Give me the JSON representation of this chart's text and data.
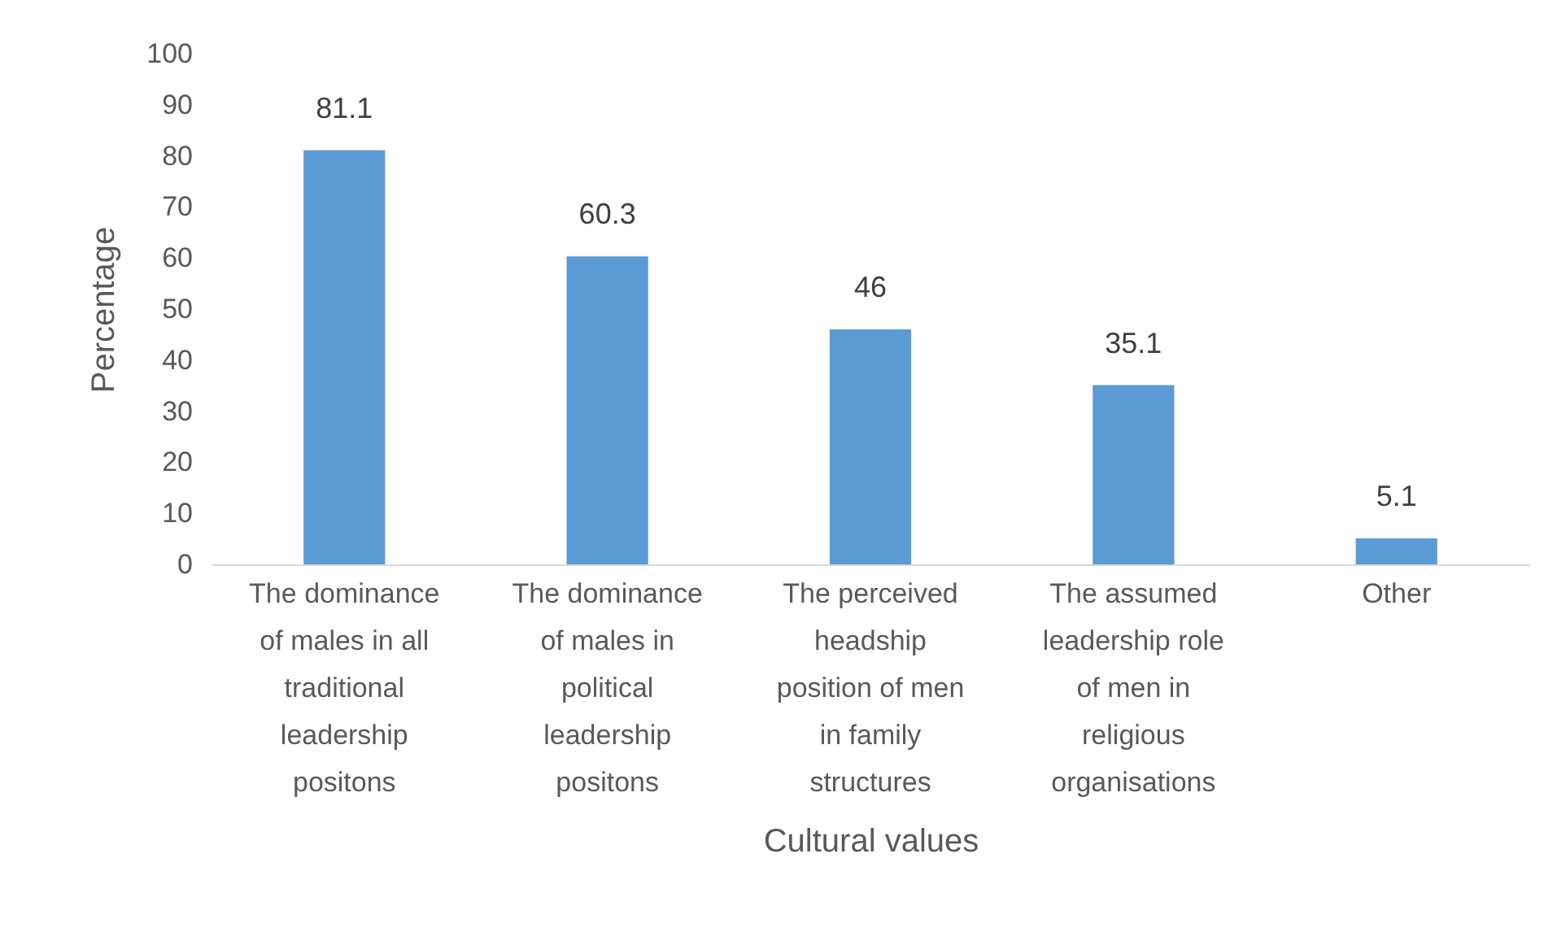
{
  "chart_data": {
    "type": "bar",
    "xlabel": "Cultural values",
    "ylabel": "Percentage",
    "categories": [
      "The dominance of males in all traditional leadership positons",
      "The dominance of males in political leadership positons",
      "The perceived headship position of men in family structures",
      "The assumed leadership role of men in religious organisations",
      "Other"
    ],
    "values": [
      81.1,
      60.3,
      46,
      35.1,
      5.1
    ],
    "color": "#5b9bd5",
    "ylim": [
      0,
      100
    ],
    "yticks": [
      0,
      10,
      20,
      30,
      40,
      50,
      60,
      70,
      80,
      90,
      100
    ],
    "grid": false,
    "data_labels": true
  }
}
